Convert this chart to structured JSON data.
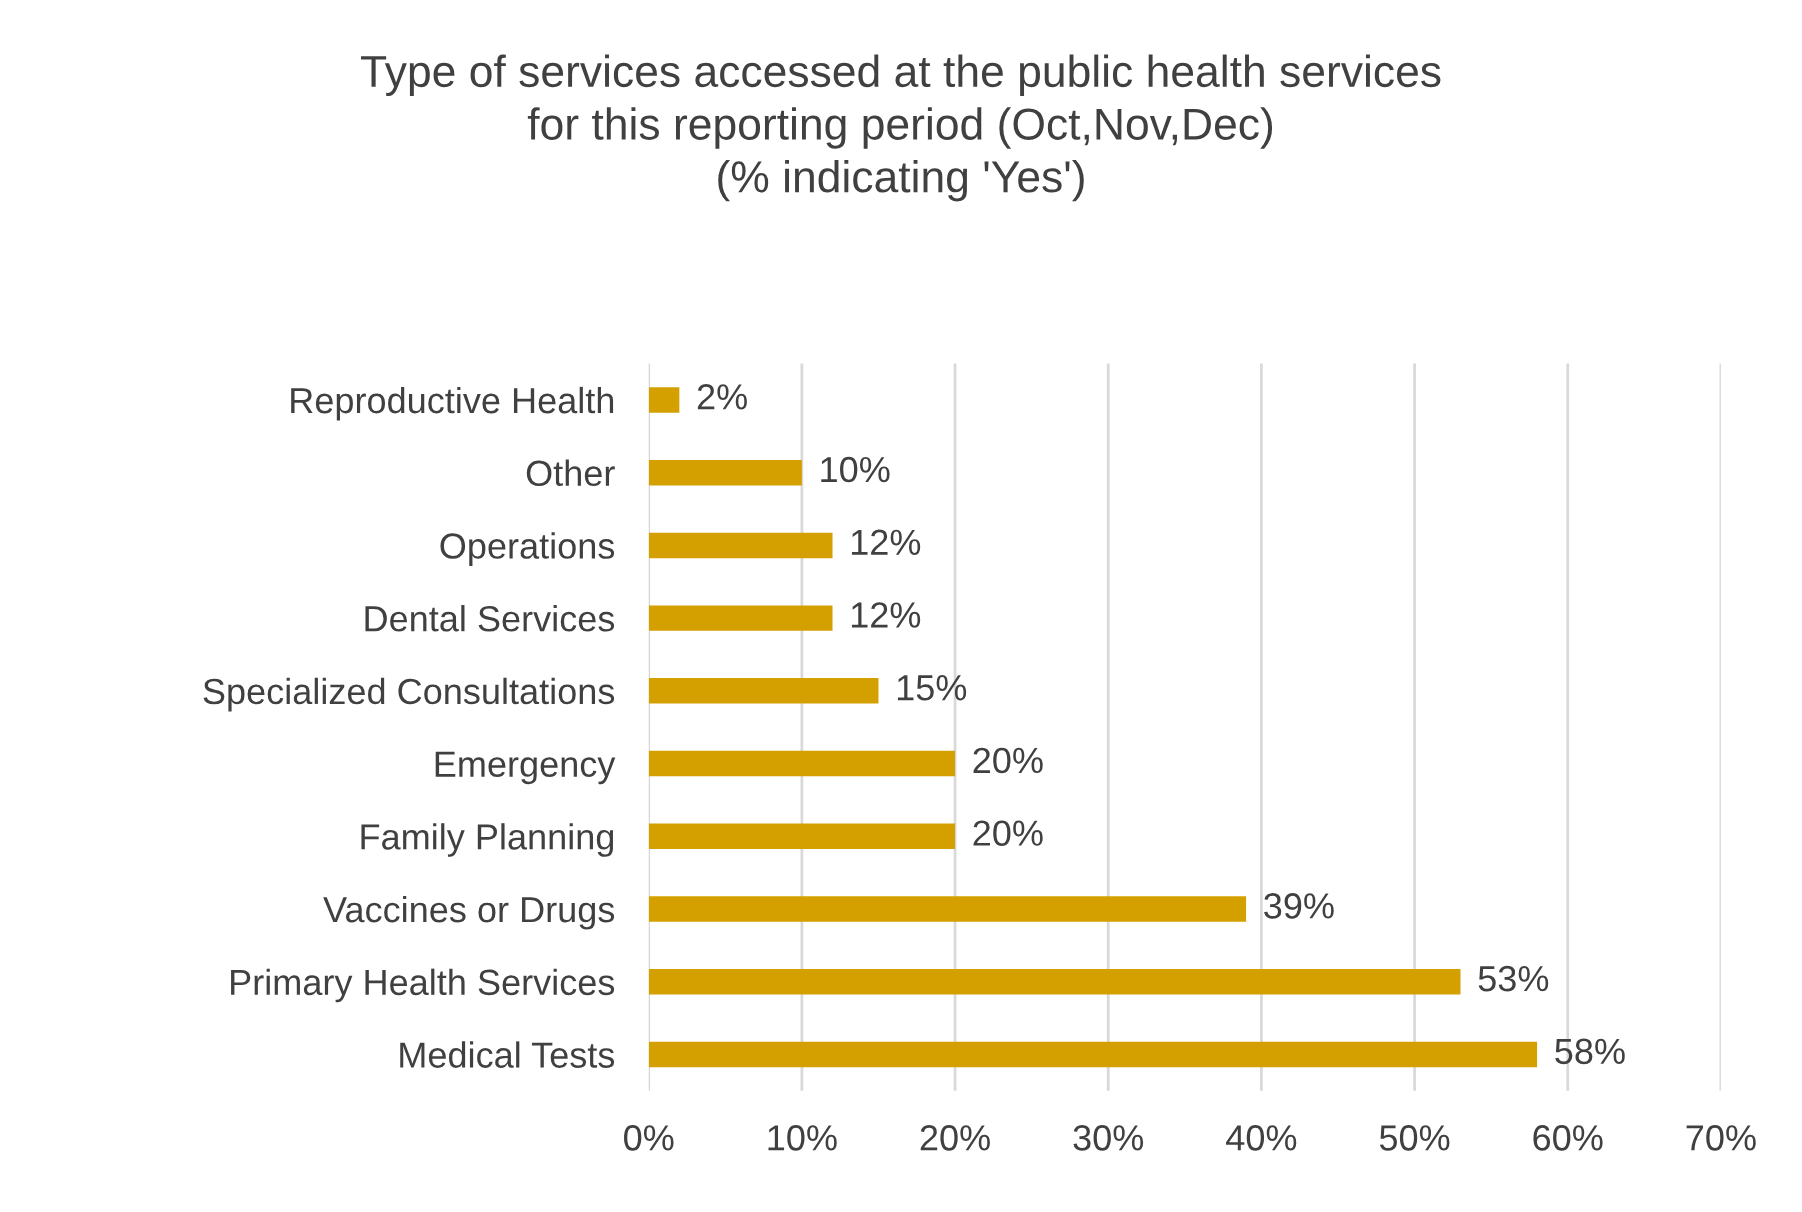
{
  "chart_data": {
    "type": "bar",
    "orientation": "horizontal",
    "title": "Type of services accessed at the public health services\nfor this reporting period (Oct,Nov,Dec)\n(% indicating 'Yes')",
    "categories": [
      "Reproductive Health",
      "Other",
      "Operations",
      "Dental Services",
      "Specialized Consultations",
      "Emergency",
      "Family Planning",
      "Vaccines or Drugs",
      "Primary Health Services",
      "Medical Tests"
    ],
    "values": [
      2,
      10,
      12,
      12,
      15,
      20,
      20,
      39,
      53,
      58
    ],
    "value_labels": [
      "2%",
      "10%",
      "12%",
      "12%",
      "15%",
      "20%",
      "20%",
      "39%",
      "53%",
      "58%"
    ],
    "color": "#d4a000",
    "xlim": [
      0,
      70
    ],
    "xticks": [
      {
        "value": 0,
        "label": "0%"
      },
      {
        "value": 10,
        "label": "10%"
      },
      {
        "value": 20,
        "label": "20%"
      },
      {
        "value": 30,
        "label": "30%"
      },
      {
        "value": 40,
        "label": "40%"
      },
      {
        "value": 50,
        "label": "50%"
      },
      {
        "value": 60,
        "label": "60%"
      },
      {
        "value": 70,
        "label": "70%"
      }
    ],
    "grid": "x",
    "legend": false
  }
}
